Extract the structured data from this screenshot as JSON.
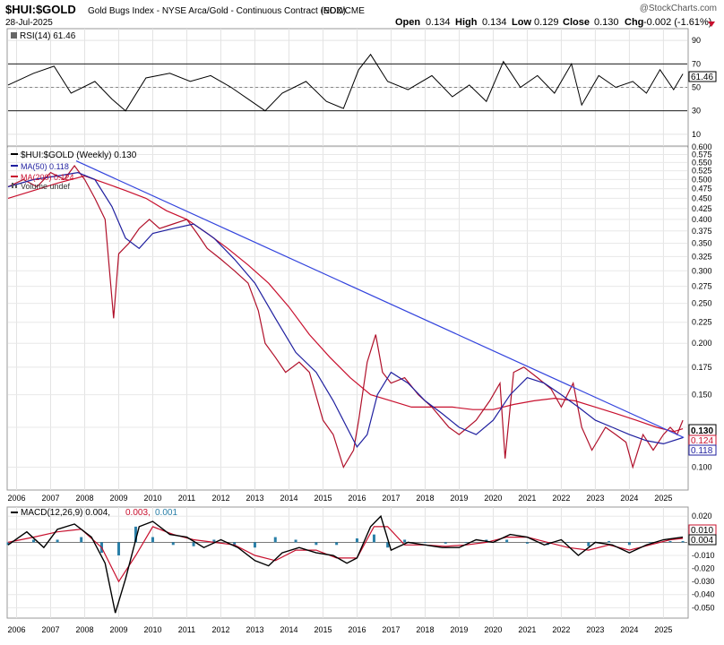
{
  "header": {
    "symbol": "$HUI:$GOLD",
    "name": "Gold Bugs Index - NYSE Arca/Gold - Continuous Contract (EOD)",
    "exchange": "INDX/CME",
    "date": "28-Jul-2025",
    "watermark": "@StockCharts.com",
    "open_label": "Open",
    "open": "0.134",
    "high_label": "High",
    "high": "0.134",
    "low_label": "Low",
    "low": "0.129",
    "close_label": "Close",
    "close": "0.130",
    "chg_label": "Chg",
    "chg": "-0.002 (-1.61%)",
    "chg_icon": "down-triangle-icon",
    "chg_color": "#c8102e"
  },
  "chart_data": [
    {
      "type": "line",
      "panel": "rsi",
      "legend": [
        "RSI(14) 61.46"
      ],
      "y_ticks": [
        "90",
        "70",
        "50",
        "30",
        "10"
      ],
      "ylim": [
        0,
        100
      ],
      "reference_lines": [
        70,
        30
      ],
      "current_value_label": "61.46",
      "series": [
        {
          "name": "RSI(14)",
          "color": "#000000",
          "x": [
            2005.75,
            2006.5,
            2007.1,
            2007.6,
            2008.3,
            2008.8,
            2009.2,
            2009.8,
            2010.5,
            2011.1,
            2011.7,
            2012.3,
            2012.9,
            2013.3,
            2013.8,
            2014.5,
            2015.1,
            2015.6,
            2016.05,
            2016.4,
            2016.9,
            2017.5,
            2018.2,
            2018.8,
            2019.3,
            2019.8,
            2020.3,
            2020.8,
            2021.3,
            2021.8,
            2022.3,
            2022.6,
            2023.1,
            2023.6,
            2024.1,
            2024.5,
            2024.9,
            2025.3,
            2025.57
          ],
          "values": [
            52,
            62,
            68,
            45,
            55,
            40,
            30,
            58,
            62,
            55,
            60,
            50,
            38,
            30,
            45,
            55,
            38,
            32,
            65,
            78,
            55,
            48,
            60,
            42,
            52,
            38,
            72,
            50,
            60,
            45,
            70,
            35,
            60,
            50,
            55,
            45,
            65,
            48,
            61.46
          ]
        }
      ]
    },
    {
      "type": "line",
      "panel": "price",
      "scale": "log",
      "ylim": [
        0.088,
        0.6
      ],
      "y_ticks": [
        "0.600",
        "0.575",
        "0.550",
        "0.525",
        "0.500",
        "0.475",
        "0.450",
        "0.425",
        "0.400",
        "0.375",
        "0.350",
        "0.325",
        "0.300",
        "0.275",
        "0.250",
        "0.225",
        "0.200",
        "0.175",
        "0.150",
        "0.125",
        "0.100"
      ],
      "legend": [
        "$HUI:$GOLD (Weekly) 0.130",
        "MA(50) 0.118",
        "MA(200) 0.124",
        "Volume undef"
      ],
      "legend_colors": [
        "#000000",
        "#1f1f9f",
        "#c8102e",
        "#555555"
      ],
      "current_value_labels": [
        "0.130",
        "0.124",
        "0.118"
      ],
      "trendline": {
        "color": "#3344dd",
        "x": [
          2007.75,
          2025.6
        ],
        "values": [
          0.555,
          0.118
        ]
      },
      "series": [
        {
          "name": "$HUI:$GOLD",
          "color": "#b0102a",
          "x": [
            2005.75,
            2006.2,
            2006.6,
            2007.0,
            2007.4,
            2007.7,
            2008.0,
            2008.3,
            2008.6,
            2008.85,
            2009.0,
            2009.3,
            2009.6,
            2009.9,
            2010.2,
            2010.6,
            2011.0,
            2011.3,
            2011.6,
            2012.0,
            2012.4,
            2012.8,
            2013.1,
            2013.3,
            2013.6,
            2013.9,
            2014.3,
            2014.6,
            2015.0,
            2015.3,
            2015.6,
            2015.9,
            2016.05,
            2016.3,
            2016.55,
            2016.75,
            2017.0,
            2017.4,
            2017.8,
            2018.2,
            2018.7,
            2019.0,
            2019.5,
            2019.9,
            2020.2,
            2020.35,
            2020.6,
            2020.9,
            2021.3,
            2021.7,
            2022.0,
            2022.35,
            2022.6,
            2022.9,
            2023.3,
            2023.6,
            2023.9,
            2024.1,
            2024.4,
            2024.7,
            2025.0,
            2025.2,
            2025.4,
            2025.57
          ],
          "values": [
            0.48,
            0.5,
            0.48,
            0.52,
            0.5,
            0.54,
            0.5,
            0.45,
            0.4,
            0.23,
            0.33,
            0.35,
            0.38,
            0.4,
            0.38,
            0.39,
            0.4,
            0.37,
            0.34,
            0.32,
            0.3,
            0.28,
            0.24,
            0.2,
            0.185,
            0.17,
            0.18,
            0.17,
            0.13,
            0.12,
            0.1,
            0.11,
            0.13,
            0.18,
            0.21,
            0.17,
            0.16,
            0.165,
            0.15,
            0.14,
            0.125,
            0.12,
            0.13,
            0.145,
            0.16,
            0.105,
            0.17,
            0.175,
            0.165,
            0.155,
            0.14,
            0.16,
            0.125,
            0.11,
            0.125,
            0.12,
            0.115,
            0.1,
            0.12,
            0.11,
            0.12,
            0.125,
            0.12,
            0.13
          ]
        },
        {
          "name": "MA(50)",
          "color": "#1f1f9f",
          "x": [
            2005.75,
            2006.5,
            2007.2,
            2007.8,
            2008.3,
            2008.8,
            2009.2,
            2009.6,
            2010.0,
            2010.6,
            2011.2,
            2011.8,
            2012.4,
            2013.0,
            2013.6,
            2014.2,
            2014.8,
            2015.3,
            2015.7,
            2016.0,
            2016.3,
            2016.6,
            2017.0,
            2017.5,
            2018.0,
            2018.5,
            2019.0,
            2019.5,
            2020.0,
            2020.5,
            2021.0,
            2021.5,
            2022.0,
            2022.5,
            2023.0,
            2023.5,
            2024.0,
            2024.5,
            2025.0,
            2025.57
          ],
          "values": [
            0.48,
            0.5,
            0.51,
            0.52,
            0.5,
            0.43,
            0.36,
            0.34,
            0.37,
            0.38,
            0.39,
            0.36,
            0.32,
            0.28,
            0.23,
            0.19,
            0.17,
            0.145,
            0.125,
            0.112,
            0.12,
            0.15,
            0.17,
            0.16,
            0.145,
            0.135,
            0.125,
            0.12,
            0.13,
            0.15,
            0.165,
            0.16,
            0.15,
            0.14,
            0.13,
            0.125,
            0.12,
            0.116,
            0.114,
            0.118
          ]
        },
        {
          "name": "MA(200)",
          "color": "#c8102e",
          "x": [
            2005.75,
            2006.5,
            2007.2,
            2008.0,
            2008.6,
            2009.2,
            2009.8,
            2010.4,
            2011.0,
            2011.6,
            2012.2,
            2012.8,
            2013.4,
            2014.0,
            2014.6,
            2015.2,
            2015.8,
            2016.4,
            2017.0,
            2017.6,
            2018.2,
            2018.8,
            2019.4,
            2020.0,
            2020.6,
            2021.2,
            2021.8,
            2022.4,
            2023.0,
            2023.6,
            2024.2,
            2024.8,
            2025.3,
            2025.57
          ],
          "values": [
            0.45,
            0.47,
            0.49,
            0.51,
            0.49,
            0.47,
            0.45,
            0.42,
            0.4,
            0.37,
            0.34,
            0.31,
            0.28,
            0.245,
            0.21,
            0.185,
            0.165,
            0.15,
            0.145,
            0.14,
            0.14,
            0.14,
            0.138,
            0.138,
            0.142,
            0.145,
            0.147,
            0.145,
            0.14,
            0.135,
            0.13,
            0.125,
            0.122,
            0.124
          ]
        }
      ]
    },
    {
      "type": "line",
      "panel": "macd",
      "legend": [
        "MACD(12,26,9) 0.004,",
        "0.003,",
        "0.001"
      ],
      "legend_colors": [
        "#000000",
        "#c8102e",
        "#2a7fa8"
      ],
      "y_ticks": [
        "0.020",
        "0.010",
        "0.000",
        "-0.010",
        "-0.020",
        "-0.030",
        "-0.040",
        "-0.050"
      ],
      "ylim": [
        -0.058,
        0.027
      ],
      "current_value_labels": [
        "0.010",
        "0.004"
      ],
      "series": [
        {
          "name": "MACD",
          "color": "#000000",
          "x": [
            2005.75,
            2006.3,
            2006.8,
            2007.2,
            2007.7,
            2008.2,
            2008.6,
            2008.9,
            2009.2,
            2009.6,
            2010.0,
            2010.5,
            2011.0,
            2011.5,
            2012.0,
            2012.5,
            2013.0,
            2013.4,
            2013.8,
            2014.3,
            2014.8,
            2015.3,
            2015.7,
            2016.0,
            2016.4,
            2016.7,
            2017.0,
            2017.5,
            2018.0,
            2018.5,
            2019.0,
            2019.5,
            2020.0,
            2020.5,
            2021.0,
            2021.5,
            2022.0,
            2022.5,
            2023.0,
            2023.5,
            2024.0,
            2024.5,
            2025.0,
            2025.57
          ],
          "values": [
            -0.002,
            0.008,
            -0.004,
            0.01,
            0.014,
            0.004,
            -0.016,
            -0.054,
            -0.028,
            0.012,
            0.016,
            0.006,
            0.004,
            -0.004,
            0.002,
            -0.004,
            -0.014,
            -0.018,
            -0.008,
            -0.004,
            -0.008,
            -0.01,
            -0.016,
            -0.012,
            0.012,
            0.02,
            -0.006,
            0.0,
            -0.002,
            -0.004,
            -0.004,
            0.002,
            0.0,
            0.006,
            0.004,
            -0.002,
            0.002,
            -0.01,
            0.0,
            -0.002,
            -0.008,
            -0.002,
            0.002,
            0.004
          ]
        },
        {
          "name": "Signal",
          "color": "#c8102e",
          "x": [
            2005.75,
            2006.5,
            2007.2,
            2007.9,
            2008.5,
            2009.0,
            2009.5,
            2010.0,
            2010.6,
            2011.2,
            2011.8,
            2012.4,
            2013.0,
            2013.6,
            2014.2,
            2014.8,
            2015.4,
            2016.0,
            2016.5,
            2016.9,
            2017.4,
            2018.0,
            2018.6,
            2019.2,
            2019.8,
            2020.4,
            2021.0,
            2021.6,
            2022.2,
            2022.8,
            2023.4,
            2024.0,
            2024.6,
            2025.2,
            2025.57
          ],
          "values": [
            0.0,
            0.004,
            0.008,
            0.01,
            -0.004,
            -0.03,
            -0.01,
            0.012,
            0.006,
            0.002,
            0.0,
            -0.002,
            -0.01,
            -0.014,
            -0.006,
            -0.006,
            -0.012,
            -0.012,
            0.012,
            0.012,
            -0.002,
            -0.002,
            -0.003,
            -0.002,
            0.0,
            0.004,
            0.004,
            0.0,
            -0.004,
            -0.006,
            -0.002,
            -0.006,
            -0.002,
            0.002,
            0.003
          ]
        },
        {
          "name": "Histogram",
          "color": "#2a7fa8",
          "style": "histogram",
          "x": [
            2005.75,
            2006.5,
            2007.2,
            2007.9,
            2008.5,
            2009.0,
            2009.5,
            2010.0,
            2010.6,
            2011.2,
            2011.8,
            2012.4,
            2013.0,
            2013.6,
            2014.2,
            2014.8,
            2015.4,
            2016.0,
            2016.5,
            2016.9,
            2017.4,
            2018.0,
            2018.6,
            2019.2,
            2019.8,
            2020.4,
            2021.0,
            2021.6,
            2022.2,
            2022.8,
            2023.4,
            2024.0,
            2024.6,
            2025.2,
            2025.57
          ],
          "values": [
            -0.002,
            0.002,
            0.002,
            0.004,
            -0.008,
            -0.01,
            0.012,
            0.004,
            -0.002,
            -0.003,
            0.002,
            -0.002,
            -0.004,
            0.004,
            0.002,
            -0.002,
            -0.002,
            0.003,
            0.006,
            -0.004,
            0.002,
            0.0,
            -0.001,
            0.0,
            0.002,
            0.002,
            -0.001,
            -0.002,
            0.0,
            -0.003,
            0.001,
            -0.002,
            0.0,
            0.001,
            0.001
          ]
        }
      ]
    }
  ],
  "x_axis": {
    "years": [
      "2006",
      "2007",
      "2008",
      "2009",
      "2010",
      "2011",
      "2012",
      "2013",
      "2014",
      "2015",
      "2016",
      "2017",
      "2018",
      "2019",
      "2020",
      "2021",
      "2022",
      "2023",
      "2024",
      "2025"
    ],
    "year_values": [
      2006,
      2007,
      2008,
      2009,
      2010,
      2011,
      2012,
      2013,
      2014,
      2015,
      2016,
      2017,
      2018,
      2019,
      2020,
      2021,
      2022,
      2023,
      2024,
      2025
    ],
    "range": [
      2005.75,
      2025.7
    ]
  }
}
